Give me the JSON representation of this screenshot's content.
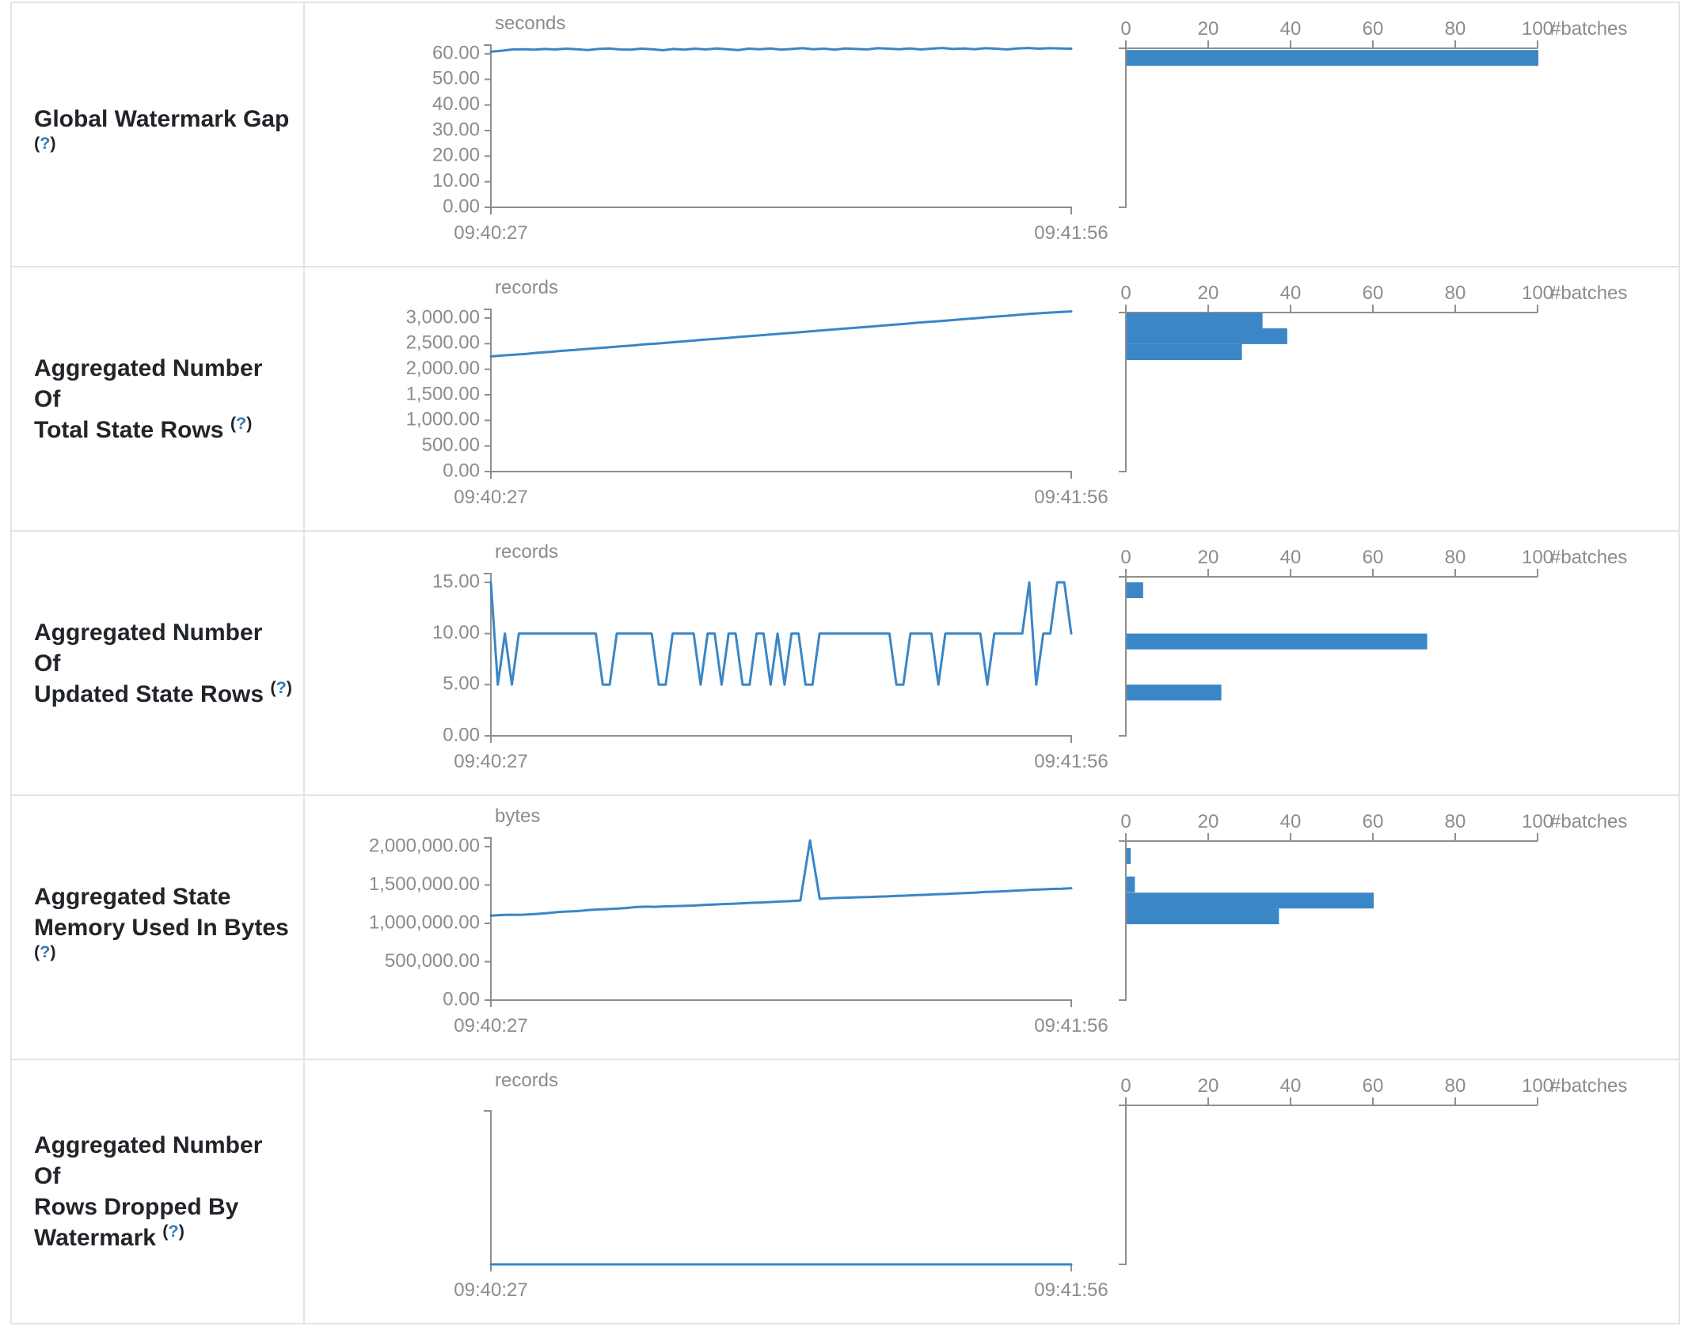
{
  "help": {
    "open": "(",
    "q": "?",
    "close": ")"
  },
  "colors": {
    "accent": "#3a86c6",
    "axis_line": "#8f8f8f",
    "axis_text": "#8c8c8c",
    "label_text": "#212529",
    "help_link": "#337ab7",
    "border": "#e4e4e4"
  },
  "chart_data": [
    {
      "type": "line",
      "title": "Global Watermark Gap",
      "label_lines": [
        "Global Watermark Gap",
        ""
      ],
      "unit": "seconds",
      "x_tick_labels": [
        "09:40:27",
        "09:41:56"
      ],
      "y_max_tick": 60,
      "y_ticks": [
        {
          "label": "0.00",
          "value": 0
        },
        {
          "label": "10.00",
          "value": 10
        },
        {
          "label": "20.00",
          "value": 20
        },
        {
          "label": "30.00",
          "value": 30
        },
        {
          "label": "40.00",
          "value": 40
        },
        {
          "label": "50.00",
          "value": 50
        },
        {
          "label": "60.00",
          "value": 60
        }
      ],
      "values": [
        60.8,
        61.2,
        61.7,
        61.8,
        61.6,
        61.9,
        61.7,
        62.0,
        61.8,
        61.5,
        61.9,
        62.1,
        61.7,
        61.6,
        62.0,
        61.8,
        61.4,
        61.9,
        61.6,
        62.0,
        61.7,
        62.1,
        61.8,
        61.5,
        62.0,
        61.8,
        62.1,
        61.6,
        61.9,
        62.2,
        61.8,
        62.0,
        61.6,
        62.1,
        61.9,
        61.7,
        62.2,
        62.0,
        61.8,
        62.1,
        61.7,
        62.0,
        62.3,
        61.9,
        62.1,
        61.8,
        62.2,
        62.0,
        61.7,
        62.1,
        62.3,
        62.0,
        62.2,
        62.1,
        62.0
      ],
      "histogram": {
        "type": "bar",
        "orientation": "horizontal",
        "xlabel": "#batches",
        "x_ticks": [
          0,
          20,
          40,
          60,
          80,
          100
        ],
        "bins": [
          {
            "value": 61.5,
            "count": 100
          }
        ]
      }
    },
    {
      "type": "line",
      "title": "Aggregated Number Of Total State Rows",
      "label_lines": [
        "Aggregated Number Of",
        "Total State Rows"
      ],
      "unit": "records",
      "x_tick_labels": [
        "09:40:27",
        "09:41:56"
      ],
      "y_max_tick": 3000,
      "y_ticks": [
        {
          "label": "0.00",
          "value": 0
        },
        {
          "label": "500.00",
          "value": 500
        },
        {
          "label": "1,000.00",
          "value": 1000
        },
        {
          "label": "1,500.00",
          "value": 1500
        },
        {
          "label": "2,000.00",
          "value": 2000
        },
        {
          "label": "2,500.00",
          "value": 2500
        },
        {
          "label": "3,000.00",
          "value": 3000
        }
      ],
      "values": [
        2250,
        2268,
        2285,
        2300,
        2322,
        2338,
        2360,
        2375,
        2395,
        2412,
        2430,
        2450,
        2465,
        2488,
        2502,
        2520,
        2540,
        2558,
        2578,
        2595,
        2612,
        2632,
        2650,
        2668,
        2688,
        2705,
        2722,
        2742,
        2760,
        2778,
        2798,
        2815,
        2832,
        2852,
        2870,
        2888,
        2908,
        2925,
        2942,
        2962,
        2980,
        2998,
        3018,
        3035,
        3052,
        3072,
        3090,
        3105,
        3118,
        3130
      ],
      "histogram": {
        "type": "bar",
        "orientation": "horizontal",
        "xlabel": "#batches",
        "x_ticks": [
          0,
          20,
          40,
          60,
          80,
          100
        ],
        "bins": [
          {
            "value": 3100,
            "count": 33
          },
          {
            "value": 2800,
            "count": 39
          },
          {
            "value": 2490,
            "count": 28
          }
        ]
      }
    },
    {
      "type": "line",
      "title": "Aggregated Number Of Updated State Rows",
      "label_lines": [
        "Aggregated Number Of",
        "Updated State Rows"
      ],
      "unit": "records",
      "x_tick_labels": [
        "09:40:27",
        "09:41:56"
      ],
      "y_max_tick": 15,
      "y_ticks": [
        {
          "label": "0.00",
          "value": 0
        },
        {
          "label": "5.00",
          "value": 5
        },
        {
          "label": "10.00",
          "value": 10
        },
        {
          "label": "15.00",
          "value": 15
        }
      ],
      "values": [
        15,
        5,
        10,
        5,
        10,
        10,
        10,
        10,
        10,
        10,
        10,
        10,
        10,
        10,
        10,
        10,
        5,
        5,
        10,
        10,
        10,
        10,
        10,
        10,
        5,
        5,
        10,
        10,
        10,
        10,
        5,
        10,
        10,
        5,
        10,
        10,
        5,
        5,
        10,
        10,
        5,
        10,
        5,
        10,
        10,
        5,
        5,
        10,
        10,
        10,
        10,
        10,
        10,
        10,
        10,
        10,
        10,
        10,
        5,
        5,
        10,
        10,
        10,
        10,
        5,
        10,
        10,
        10,
        10,
        10,
        10,
        5,
        10,
        10,
        10,
        10,
        10,
        15,
        5,
        10,
        10,
        15,
        15,
        10
      ],
      "histogram": {
        "type": "bar",
        "orientation": "horizontal",
        "xlabel": "#batches",
        "x_ticks": [
          0,
          20,
          40,
          60,
          80,
          100
        ],
        "bins": [
          {
            "value": 15,
            "count": 4
          },
          {
            "value": 10,
            "count": 73
          },
          {
            "value": 5,
            "count": 23
          }
        ]
      }
    },
    {
      "type": "line",
      "title": "Aggregated State Memory Used In Bytes",
      "label_lines": [
        "Aggregated State",
        "Memory Used In Bytes",
        ""
      ],
      "unit": "bytes",
      "x_tick_labels": [
        "09:40:27",
        "09:41:56"
      ],
      "y_max_tick": 2000000,
      "y_ticks": [
        {
          "label": "0.00",
          "value": 0
        },
        {
          "label": "500,000.00",
          "value": 500000
        },
        {
          "label": "1,000,000.00",
          "value": 1000000
        },
        {
          "label": "1,500,000.00",
          "value": 1500000
        },
        {
          "label": "2,000,000.00",
          "value": 2000000
        }
      ],
      "values": [
        1100000,
        1108000,
        1112000,
        1110000,
        1118000,
        1125000,
        1135000,
        1148000,
        1155000,
        1160000,
        1172000,
        1180000,
        1186000,
        1192000,
        1200000,
        1212000,
        1218000,
        1215000,
        1222000,
        1225000,
        1228000,
        1232000,
        1240000,
        1245000,
        1252000,
        1255000,
        1262000,
        1268000,
        1272000,
        1278000,
        1285000,
        1290000,
        1298000,
        2080000,
        1320000,
        1328000,
        1332000,
        1335000,
        1340000,
        1342000,
        1348000,
        1352000,
        1358000,
        1362000,
        1368000,
        1372000,
        1378000,
        1382000,
        1390000,
        1395000,
        1400000,
        1408000,
        1412000,
        1418000,
        1425000,
        1430000,
        1438000,
        1442000,
        1448000,
        1452000,
        1458000
      ],
      "histogram": {
        "type": "bar",
        "orientation": "horizontal",
        "xlabel": "#batches",
        "x_ticks": [
          0,
          20,
          40,
          60,
          80,
          100
        ],
        "bins": [
          {
            "value": 1980000,
            "count": 1
          },
          {
            "value": 1610000,
            "count": 2
          },
          {
            "value": 1400000,
            "count": 60
          },
          {
            "value": 1195000,
            "count": 37
          }
        ]
      }
    },
    {
      "type": "line",
      "title": "Aggregated Number Of Rows Dropped By Watermark",
      "label_lines": [
        "Aggregated Number Of",
        "Rows Dropped By",
        "Watermark"
      ],
      "unit": "records",
      "x_tick_labels": [
        "09:40:27",
        "09:41:56"
      ],
      "y_max_tick": null,
      "y_ticks": [],
      "values": [
        0,
        0,
        0,
        0,
        0,
        0,
        0,
        0,
        0,
        0
      ],
      "histogram": {
        "type": "bar",
        "orientation": "horizontal",
        "xlabel": "#batches",
        "x_ticks": [
          0,
          20,
          40,
          60,
          80,
          100
        ],
        "bins": []
      }
    }
  ]
}
